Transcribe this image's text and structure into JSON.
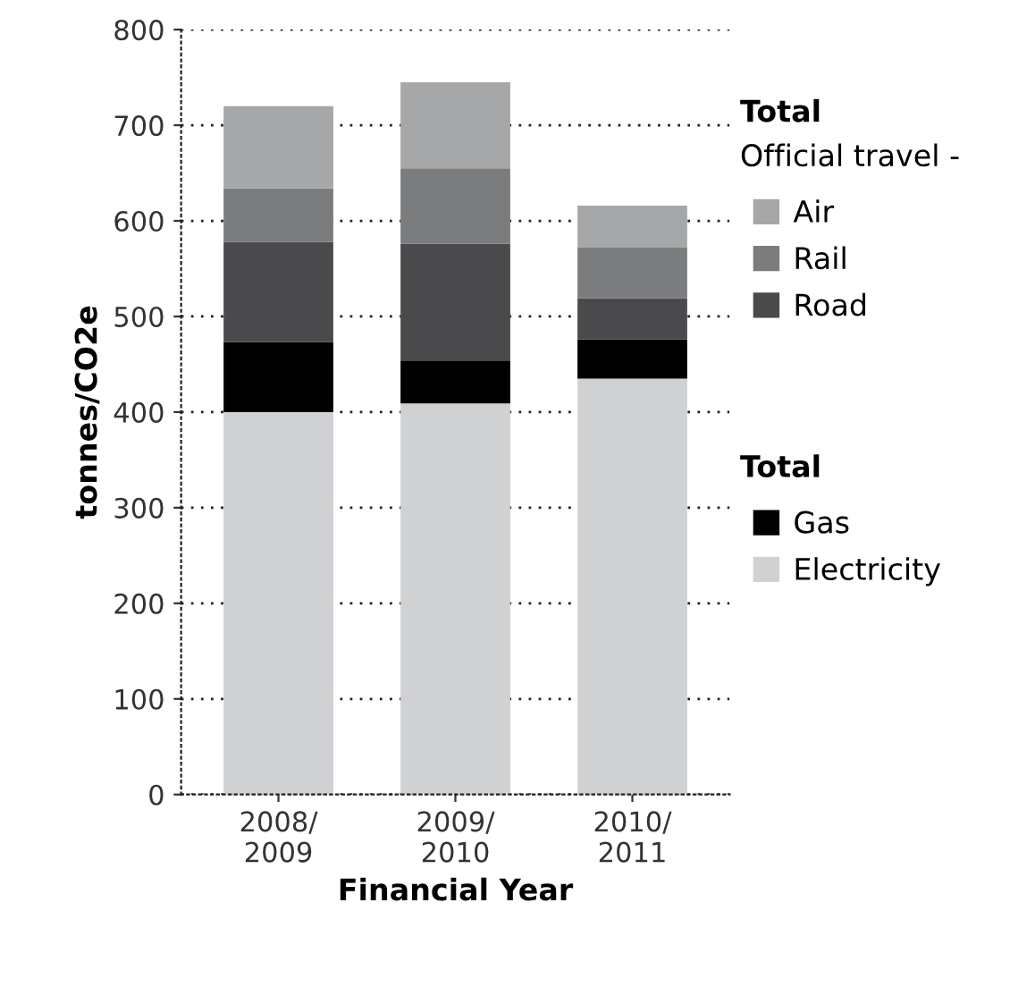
{
  "chart_data": {
    "type": "bar",
    "stacked": true,
    "xlabel": "Financial Year",
    "ylabel": "tonnes/CO2e",
    "categories": [
      "2008/\n2009",
      "2009/\n2010",
      "2010/\n2011"
    ],
    "series": [
      {
        "name": "Electricity",
        "color": "#d0d1d3",
        "values": [
          400,
          409,
          435
        ]
      },
      {
        "name": "Gas",
        "color": "#000000",
        "values": [
          73,
          45,
          41
        ]
      },
      {
        "name": "Road",
        "color": "#4a4a4c",
        "values": [
          105,
          122,
          43
        ]
      },
      {
        "name": "Rail",
        "color": "#7b7c7e",
        "values": [
          56,
          79,
          53
        ]
      },
      {
        "name": "Air",
        "color": "#a6a7a9",
        "values": [
          86,
          90,
          44
        ]
      }
    ],
    "annotations": [
      "Total",
      "Official travel -",
      "Total"
    ],
    "ylim": [
      0,
      800
    ],
    "yticks": [
      0,
      100,
      200,
      300,
      400,
      500,
      600,
      700,
      800
    ],
    "grid": "y",
    "legend": "right"
  }
}
